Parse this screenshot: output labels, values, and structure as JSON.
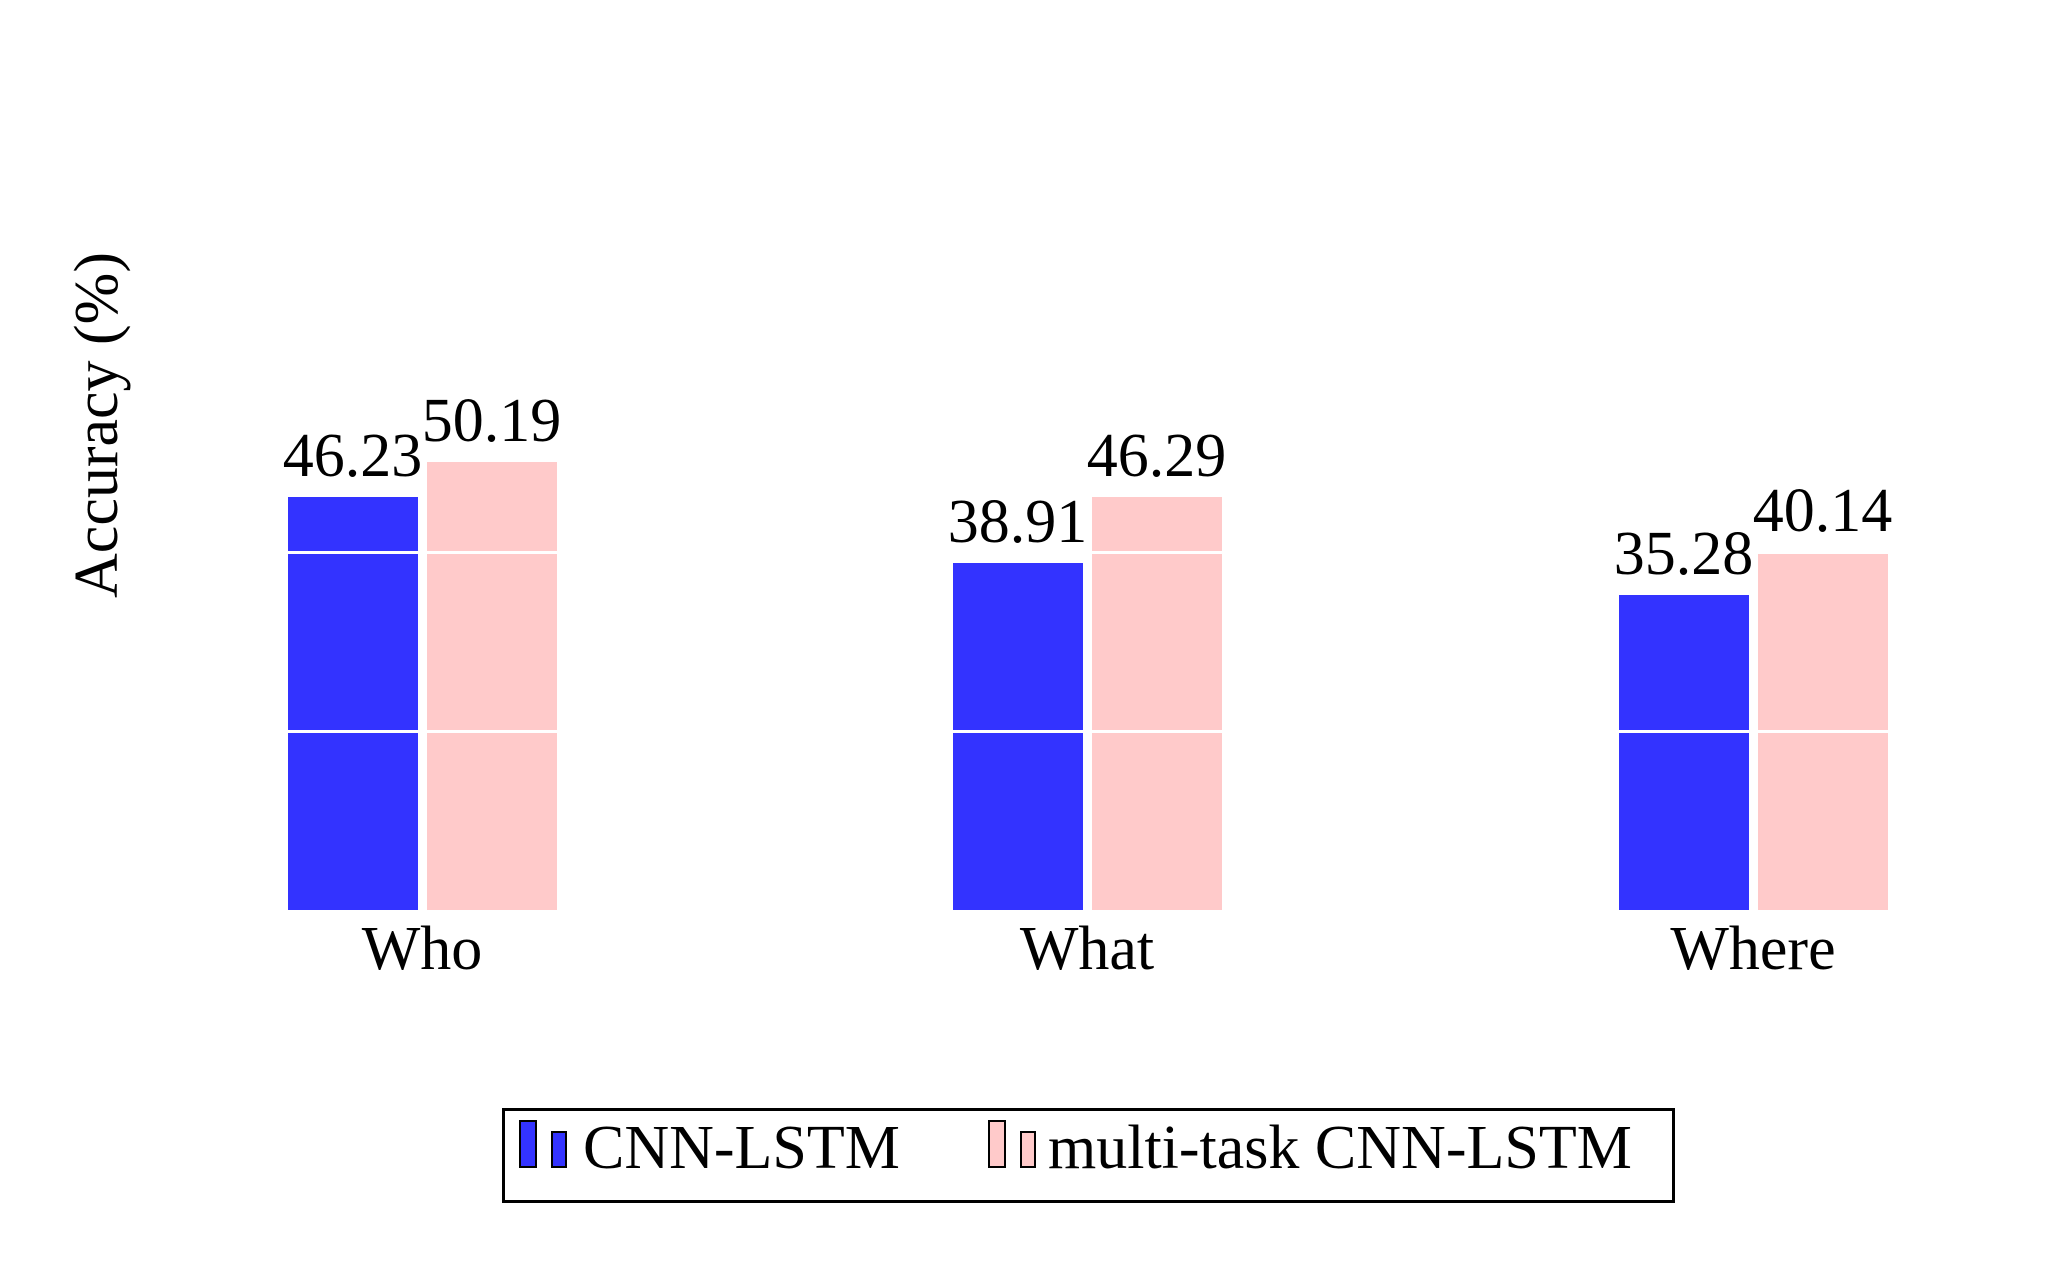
{
  "chart_data": {
    "type": "bar",
    "title": "",
    "xlabel": "",
    "ylabel": "Accuracy (%)",
    "categories": [
      "Who",
      "What",
      "Where"
    ],
    "series": [
      {
        "name": "CNN-LSTM",
        "color": "#3333FF",
        "values": [
          46.23,
          38.91,
          35.28
        ]
      },
      {
        "name": "multi-task CNN-LSTM",
        "color": "#FFCACA",
        "values": [
          50.19,
          46.29,
          40.14
        ]
      }
    ],
    "value_labels": [
      "46.23",
      "50.19",
      "38.91",
      "46.29",
      "35.28",
      "40.14"
    ],
    "ylim": [
      0,
      60
    ],
    "gridlines": {
      "values": [
        20,
        40
      ],
      "color": "#FFFFFF"
    },
    "grid": "white-major-lines-over-bars",
    "legend_position": "bottom",
    "background_color": "#FFFFFF",
    "text_color": "#000000"
  }
}
